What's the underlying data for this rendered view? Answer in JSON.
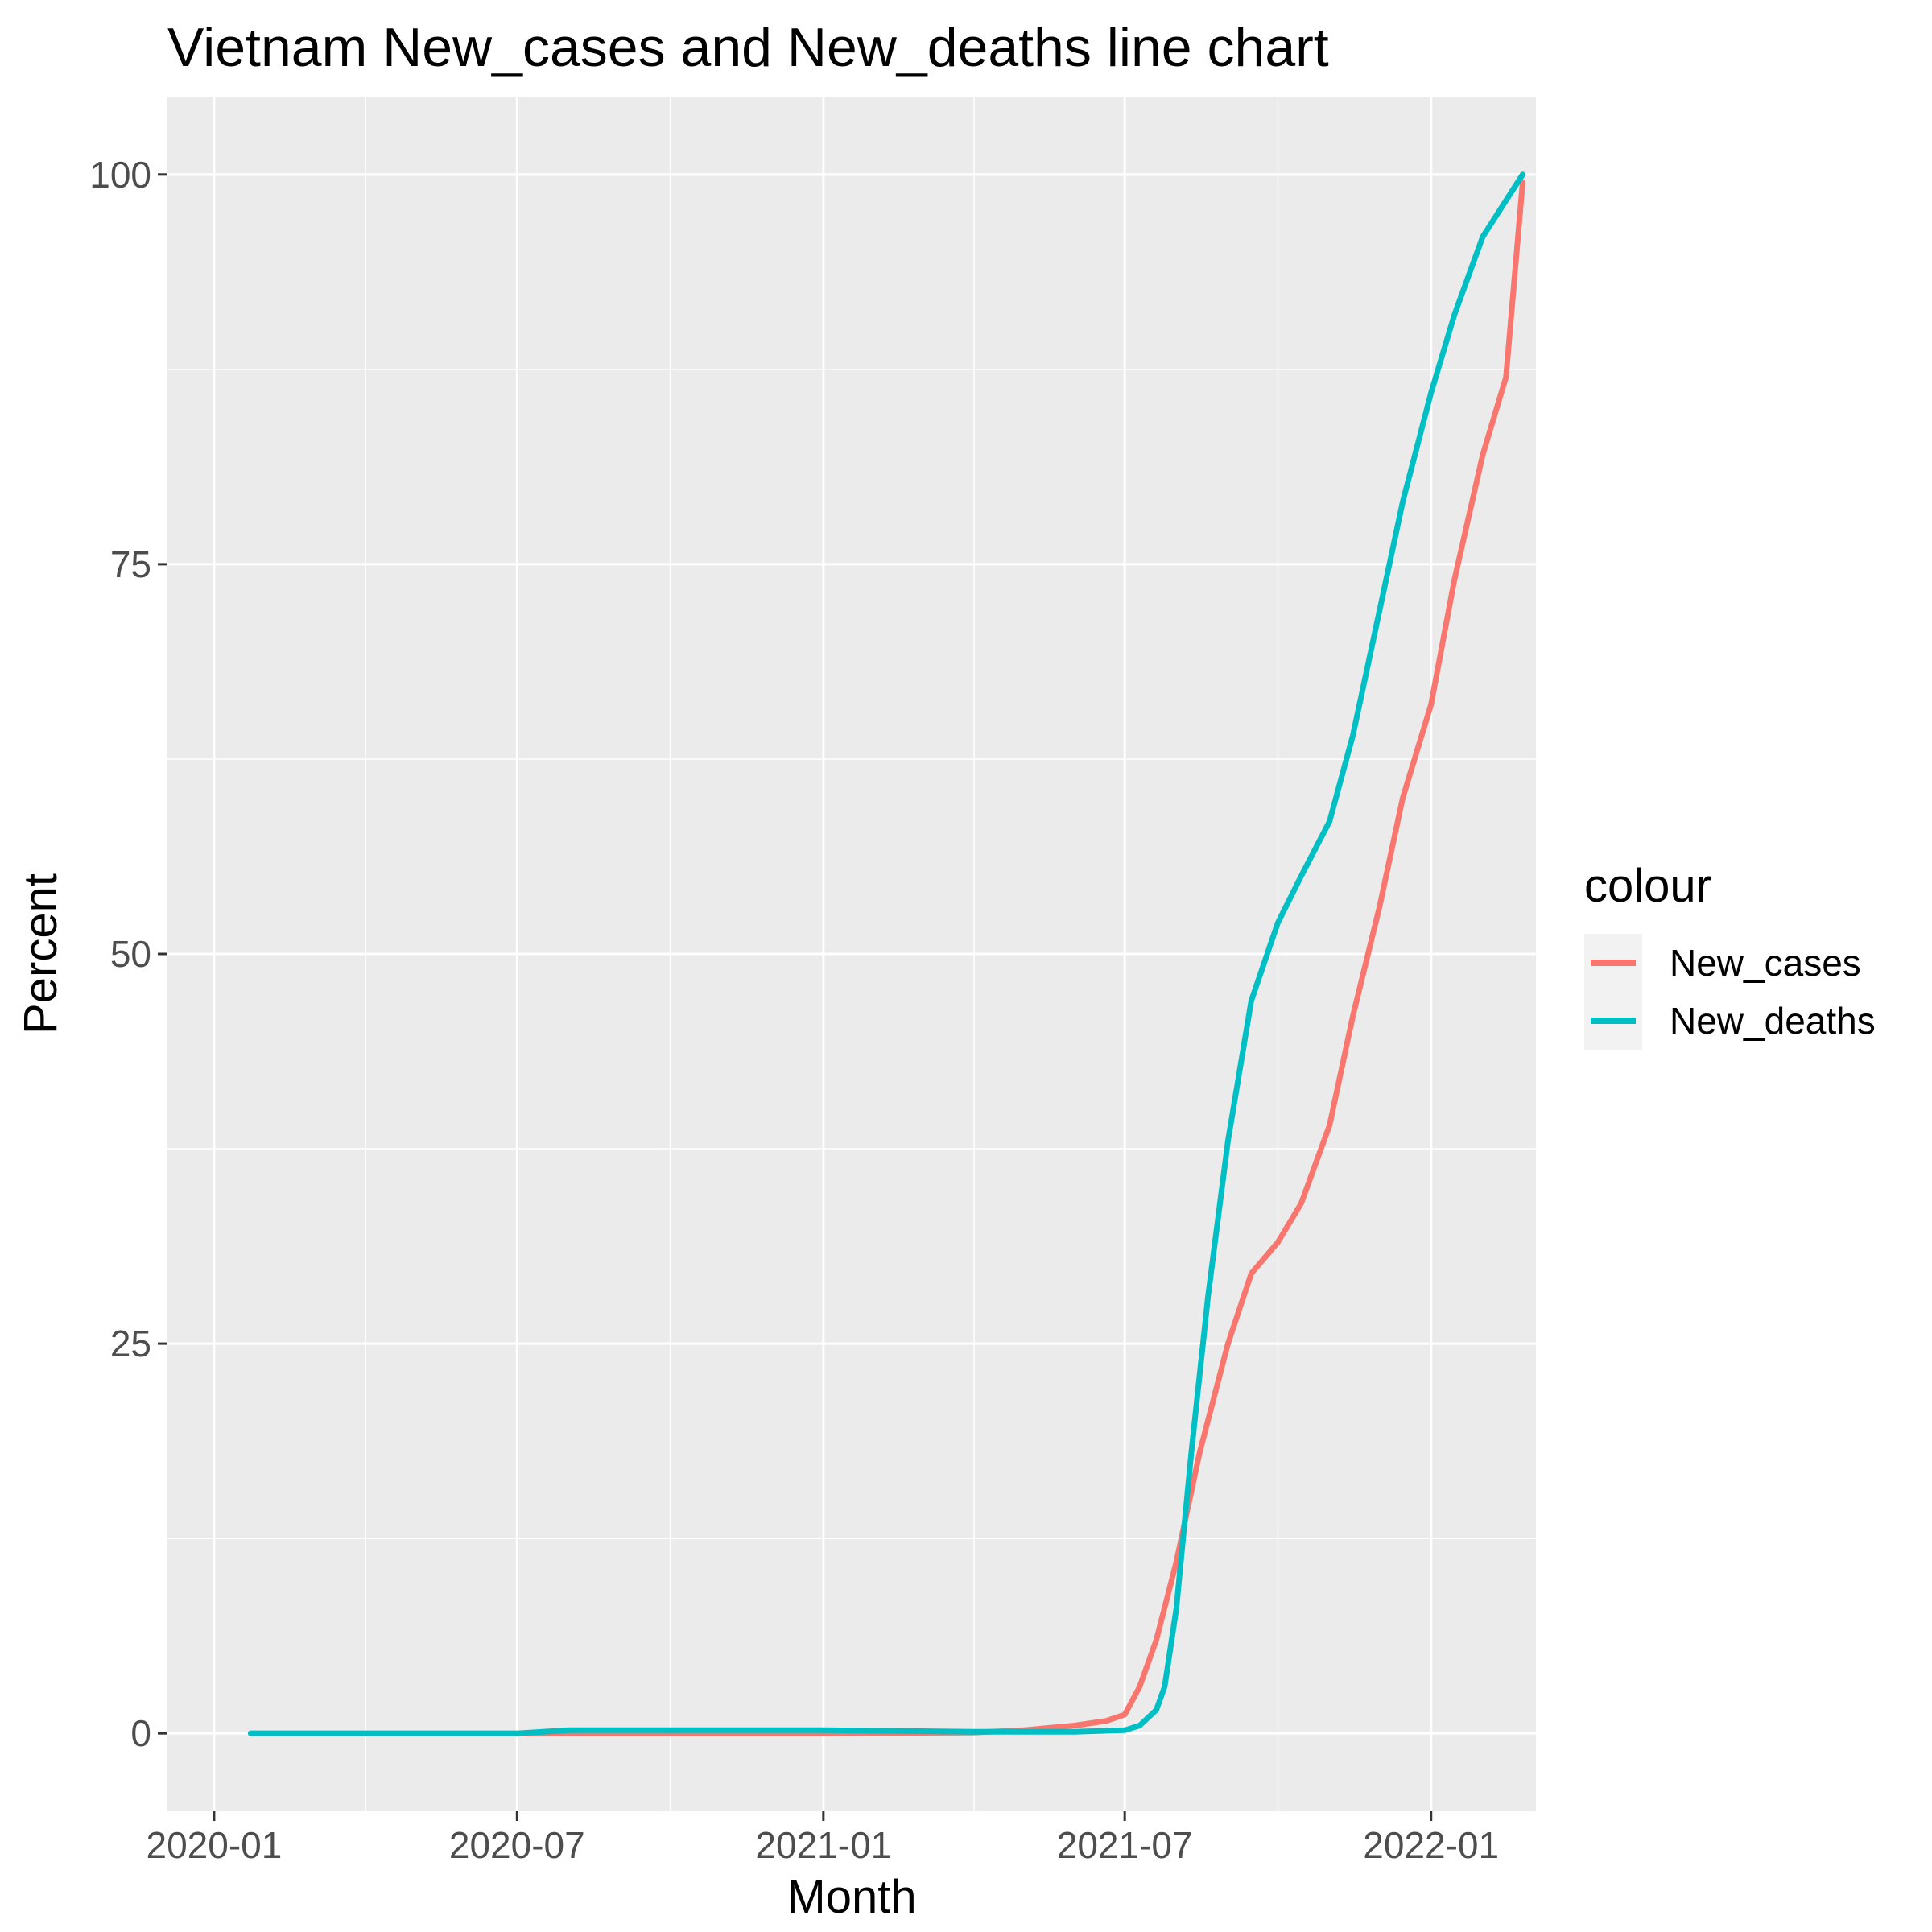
{
  "chart_data": {
    "type": "line",
    "title": "Vietnam  New_cases and New_deaths line chart",
    "xlabel": "Month",
    "ylabel": "Percent",
    "x_ticks": [
      "2020-01",
      "2020-07",
      "2021-01",
      "2021-07",
      "2022-01"
    ],
    "y_ticks": [
      "0",
      "25",
      "50",
      "75",
      "100"
    ],
    "xlim": [
      "2019-12-04",
      "2022-03-05"
    ],
    "ylim": [
      -5,
      105
    ],
    "grid": true,
    "legend": {
      "title": "colour",
      "position": "right",
      "entries": [
        "New_cases",
        "New_deaths"
      ]
    },
    "series": [
      {
        "name": "New_cases",
        "color": "#F8766D",
        "points": [
          [
            "2020-01-23",
            0
          ],
          [
            "2020-07-01",
            0
          ],
          [
            "2021-01-01",
            0
          ],
          [
            "2021-04-01",
            0.05
          ],
          [
            "2021-05-01",
            0.2
          ],
          [
            "2021-06-01",
            0.5
          ],
          [
            "2021-06-20",
            0.8
          ],
          [
            "2021-07-01",
            1.2
          ],
          [
            "2021-07-10",
            3.0
          ],
          [
            "2021-07-20",
            6.0
          ],
          [
            "2021-08-01",
            11.0
          ],
          [
            "2021-08-15",
            18.0
          ],
          [
            "2021-09-01",
            25.0
          ],
          [
            "2021-09-15",
            29.5
          ],
          [
            "2021-10-01",
            31.5
          ],
          [
            "2021-10-15",
            34.0
          ],
          [
            "2021-11-01",
            39.0
          ],
          [
            "2021-11-15",
            46.0
          ],
          [
            "2021-12-01",
            53.0
          ],
          [
            "2021-12-15",
            60.0
          ],
          [
            "2022-01-01",
            66.0
          ],
          [
            "2022-01-15",
            74.0
          ],
          [
            "2022-02-01",
            82.0
          ],
          [
            "2022-02-15",
            87.0
          ],
          [
            "2022-02-25",
            99.5
          ]
        ]
      },
      {
        "name": "New_deaths",
        "color": "#00BFC4",
        "points": [
          [
            "2020-01-23",
            0
          ],
          [
            "2020-07-01",
            0
          ],
          [
            "2020-08-01",
            0.2
          ],
          [
            "2021-01-01",
            0.2
          ],
          [
            "2021-04-01",
            0.1
          ],
          [
            "2021-06-01",
            0.1
          ],
          [
            "2021-07-01",
            0.2
          ],
          [
            "2021-07-10",
            0.5
          ],
          [
            "2021-07-20",
            1.5
          ],
          [
            "2021-07-25",
            3.0
          ],
          [
            "2021-08-01",
            8.0
          ],
          [
            "2021-08-10",
            18.0
          ],
          [
            "2021-08-20",
            28.0
          ],
          [
            "2021-09-01",
            38.0
          ],
          [
            "2021-09-15",
            47.0
          ],
          [
            "2021-10-01",
            52.0
          ],
          [
            "2021-10-15",
            55.0
          ],
          [
            "2021-11-01",
            58.5
          ],
          [
            "2021-11-15",
            64.0
          ],
          [
            "2021-12-01",
            72.0
          ],
          [
            "2021-12-15",
            79.0
          ],
          [
            "2022-01-01",
            86.0
          ],
          [
            "2022-01-15",
            91.0
          ],
          [
            "2022-02-01",
            96.0
          ],
          [
            "2022-02-25",
            100
          ]
        ]
      }
    ]
  }
}
